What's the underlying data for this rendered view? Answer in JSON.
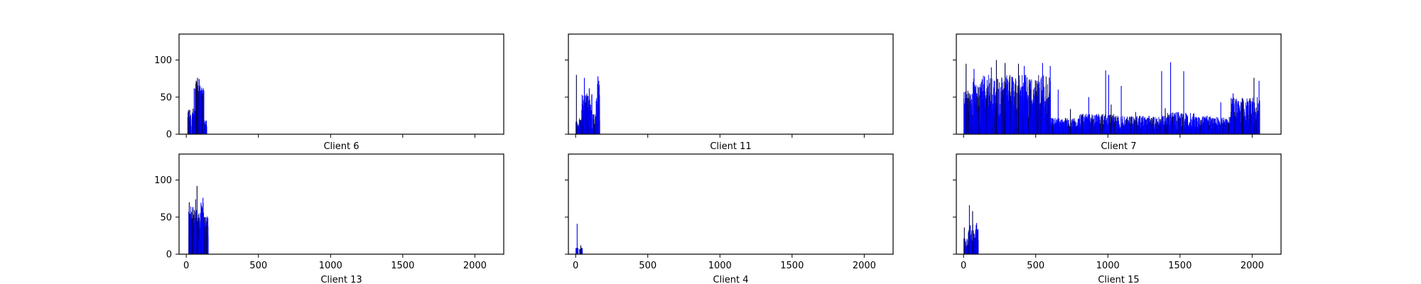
{
  "colors": {
    "bar": "#0000ff",
    "bar_dark": "#000033",
    "frame": "#000000"
  },
  "chart_data": [
    {
      "type": "bar",
      "xlabel": "Client 6",
      "xlim": [
        -50,
        2200
      ],
      "ylim": [
        0,
        135
      ],
      "xticks": [
        0,
        500,
        1000,
        1500,
        2000
      ],
      "yticks": [
        0,
        50,
        100
      ],
      "xtick_labels_visible": false,
      "ytick_labels_visible": true,
      "runs": [
        [
          8,
          30,
          5,
          34
        ],
        [
          35,
          60,
          8,
          35
        ],
        [
          60,
          95,
          40,
          76
        ],
        [
          95,
          120,
          30,
          65
        ],
        [
          120,
          140,
          5,
          20
        ]
      ],
      "spikes": [
        [
          12,
          32
        ],
        [
          28,
          24
        ],
        [
          52,
          62
        ],
        [
          66,
          72
        ],
        [
          75,
          76
        ],
        [
          92,
          60
        ],
        [
          108,
          54
        ],
        [
          116,
          56
        ]
      ]
    },
    {
      "type": "bar",
      "xlabel": "Client 11",
      "xlim": [
        -50,
        2200
      ],
      "ylim": [
        0,
        135
      ],
      "xticks": [
        0,
        500,
        1000,
        1500,
        2000
      ],
      "yticks": [
        0,
        50,
        100
      ],
      "xtick_labels_visible": false,
      "ytick_labels_visible": false,
      "runs": [
        [
          0,
          40,
          3,
          22
        ],
        [
          40,
          110,
          10,
          55
        ],
        [
          110,
          140,
          5,
          28
        ],
        [
          140,
          165,
          15,
          70
        ]
      ],
      "spikes": [
        [
          3,
          80
        ],
        [
          58,
          76
        ],
        [
          92,
          62
        ],
        [
          110,
          54
        ],
        [
          152,
          78
        ],
        [
          158,
          72
        ]
      ]
    },
    {
      "type": "bar",
      "xlabel": "Client 7",
      "xlim": [
        -50,
        2200
      ],
      "ylim": [
        0,
        135
      ],
      "xticks": [
        0,
        500,
        1000,
        1500,
        2000
      ],
      "yticks": [
        0,
        50,
        100
      ],
      "xtick_labels_visible": false,
      "ytick_labels_visible": false,
      "runs": [
        [
          0,
          50,
          10,
          60
        ],
        [
          50,
          350,
          5,
          80
        ],
        [
          350,
          600,
          5,
          80
        ],
        [
          600,
          800,
          0,
          22
        ],
        [
          800,
          1050,
          0,
          28
        ],
        [
          1050,
          1400,
          0,
          25
        ],
        [
          1400,
          1600,
          0,
          30
        ],
        [
          1600,
          1850,
          0,
          24
        ],
        [
          1850,
          2050,
          0,
          50
        ]
      ],
      "spikes": [
        [
          15,
          95
        ],
        [
          70,
          88
        ],
        [
          190,
          90
        ],
        [
          225,
          100
        ],
        [
          285,
          96
        ],
        [
          378,
          95
        ],
        [
          418,
          92
        ],
        [
          545,
          96
        ],
        [
          598,
          92
        ],
        [
          653,
          60
        ],
        [
          738,
          34
        ],
        [
          865,
          50
        ],
        [
          982,
          86
        ],
        [
          1003,
          80
        ],
        [
          1020,
          40
        ],
        [
          1090,
          65
        ],
        [
          1190,
          30
        ],
        [
          1370,
          85
        ],
        [
          1395,
          35
        ],
        [
          1432,
          97
        ],
        [
          1523,
          85
        ],
        [
          1588,
          20
        ],
        [
          1655,
          24
        ],
        [
          1685,
          25
        ],
        [
          1780,
          43
        ],
        [
          1865,
          55
        ],
        [
          1935,
          40
        ],
        [
          2010,
          76
        ],
        [
          2045,
          72
        ]
      ]
    },
    {
      "type": "bar",
      "xlabel": "Client 13",
      "xlim": [
        -50,
        2200
      ],
      "ylim": [
        0,
        135
      ],
      "xticks": [
        0,
        500,
        1000,
        1500,
        2000
      ],
      "yticks": [
        0,
        50,
        100
      ],
      "xtick_labels_visible": true,
      "ytick_labels_visible": true,
      "runs": [
        [
          15,
          45,
          20,
          65
        ],
        [
          45,
          70,
          30,
          65
        ],
        [
          70,
          100,
          15,
          60
        ],
        [
          100,
          125,
          20,
          75
        ],
        [
          125,
          150,
          15,
          55
        ]
      ],
      "spikes": [
        [
          18,
          70
        ],
        [
          42,
          60
        ],
        [
          62,
          74
        ],
        [
          72,
          92
        ],
        [
          100,
          56
        ],
        [
          113,
          76
        ],
        [
          138,
          37
        ]
      ]
    },
    {
      "type": "bar",
      "xlabel": "Client 4",
      "xlim": [
        -50,
        2200
      ],
      "ylim": [
        0,
        135
      ],
      "xticks": [
        0,
        500,
        1000,
        1500,
        2000
      ],
      "yticks": [
        0,
        50,
        100
      ],
      "xtick_labels_visible": true,
      "ytick_labels_visible": false,
      "runs": [
        [
          0,
          15,
          2,
          9
        ],
        [
          25,
          45,
          2,
          10
        ]
      ],
      "spikes": [
        [
          8,
          41
        ],
        [
          33,
          12
        ]
      ]
    },
    {
      "type": "bar",
      "xlabel": "Client 15",
      "xlim": [
        -50,
        2200
      ],
      "ylim": [
        0,
        135
      ],
      "xticks": [
        0,
        500,
        1000,
        1500,
        2000
      ],
      "yticks": [
        0,
        50,
        100
      ],
      "xtick_labels_visible": true,
      "ytick_labels_visible": false,
      "runs": [
        [
          0,
          30,
          3,
          22
        ],
        [
          30,
          100,
          5,
          40
        ]
      ],
      "spikes": [
        [
          3,
          36
        ],
        [
          38,
          66
        ],
        [
          60,
          58
        ],
        [
          88,
          42
        ]
      ]
    }
  ]
}
